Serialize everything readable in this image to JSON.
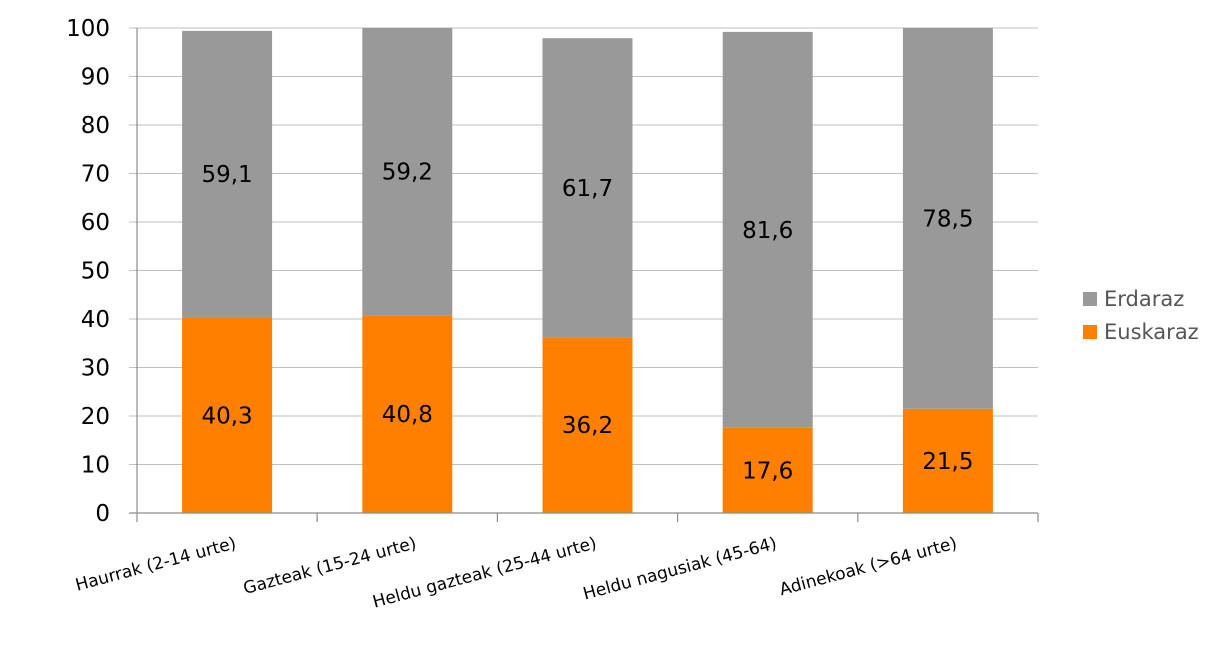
{
  "chart_data": {
    "type": "bar",
    "stacked": true,
    "categories": [
      "Haurrak (2-14 urte)",
      "Gazteak (15-24 urte)",
      "Heldu gazteak (25-44 urte)",
      "Heldu nagusiak (45-64)",
      "Adinekoak (>64 urte)"
    ],
    "series": [
      {
        "name": "Euskaraz",
        "color": "#ff8000",
        "values": [
          40.3,
          40.8,
          36.2,
          17.6,
          21.5
        ],
        "labels": [
          "40,3",
          "40,8",
          "36,2",
          "17,6",
          "21,5"
        ]
      },
      {
        "name": "Erdaraz",
        "color": "#999999",
        "values": [
          59.1,
          59.2,
          61.7,
          81.6,
          78.5
        ],
        "labels": [
          "59,1",
          "59,2",
          "61,7",
          "81,6",
          "78,5"
        ]
      }
    ],
    "legend_order": [
      "Erdaraz",
      "Euskaraz"
    ],
    "yticks": [
      "0",
      "10",
      "20",
      "30",
      "40",
      "50",
      "60",
      "70",
      "80",
      "90",
      "100"
    ],
    "ylim": [
      0,
      100
    ],
    "grid": true,
    "legend_position": "right",
    "title": "",
    "xlabel": "",
    "ylabel": ""
  }
}
